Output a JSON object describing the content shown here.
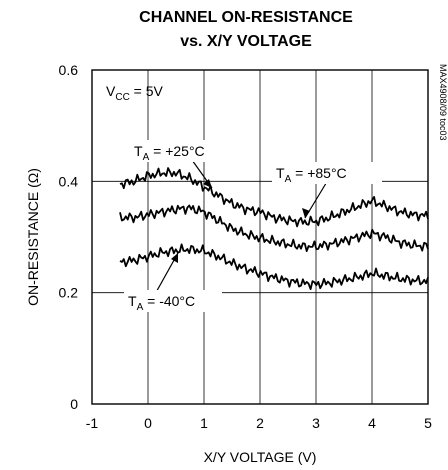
{
  "chart_data": {
    "type": "line",
    "title": [
      "CHANNEL ON-RESISTANCE",
      "vs. X/Y VOLTAGE"
    ],
    "xlabel": "X/Y VOLTAGE (V)",
    "ylabel": "ON-RESISTANCE (Ω)",
    "xlim": [
      -1,
      5
    ],
    "ylim": [
      0,
      0.6
    ],
    "xticks": [
      "-1",
      "0",
      "1",
      "2",
      "3",
      "4",
      "5"
    ],
    "yticks": [
      "0",
      "0.2",
      "0.4",
      "0.6"
    ],
    "grid": true,
    "condition": {
      "main": "V",
      "sub": "CC",
      "rest": " = 5V"
    },
    "doc_id": "MAX4908/09 toc03",
    "series": [
      {
        "label_main": "T",
        "label_sub": "A",
        "label_rest": " = +85°C",
        "x": [
          -0.5,
          -0.25,
          0,
          0.25,
          0.5,
          0.75,
          1,
          1.25,
          1.5,
          1.75,
          2,
          2.25,
          2.5,
          2.75,
          3,
          3.25,
          3.5,
          3.75,
          4,
          4.25,
          4.5,
          4.75,
          5
        ],
        "y": [
          0.395,
          0.4,
          0.41,
          0.415,
          0.415,
          0.405,
          0.39,
          0.375,
          0.36,
          0.35,
          0.345,
          0.335,
          0.33,
          0.327,
          0.328,
          0.335,
          0.345,
          0.355,
          0.365,
          0.355,
          0.345,
          0.34,
          0.338
        ]
      },
      {
        "label_main": "T",
        "label_sub": "A",
        "label_rest": " = +25°C",
        "x": [
          -0.5,
          -0.25,
          0,
          0.25,
          0.5,
          0.75,
          1,
          1.25,
          1.5,
          1.75,
          2,
          2.25,
          2.5,
          2.75,
          3,
          3.25,
          3.5,
          3.75,
          4,
          4.25,
          4.5,
          4.75,
          5
        ],
        "y": [
          0.335,
          0.335,
          0.34,
          0.345,
          0.35,
          0.352,
          0.345,
          0.33,
          0.315,
          0.305,
          0.298,
          0.292,
          0.287,
          0.283,
          0.283,
          0.287,
          0.293,
          0.3,
          0.307,
          0.3,
          0.29,
          0.285,
          0.283
        ]
      },
      {
        "label_main": "T",
        "label_sub": "A",
        "label_rest": " = -40°C",
        "x": [
          -0.5,
          -0.25,
          0,
          0.25,
          0.5,
          0.75,
          1,
          1.25,
          1.5,
          1.75,
          2,
          2.25,
          2.5,
          2.75,
          3,
          3.25,
          3.5,
          3.75,
          4,
          4.25,
          4.5,
          4.75,
          5
        ],
        "y": [
          0.255,
          0.258,
          0.265,
          0.272,
          0.276,
          0.278,
          0.275,
          0.265,
          0.253,
          0.243,
          0.235,
          0.227,
          0.221,
          0.217,
          0.215,
          0.218,
          0.223,
          0.228,
          0.235,
          0.23,
          0.225,
          0.222,
          0.22
        ]
      }
    ]
  }
}
